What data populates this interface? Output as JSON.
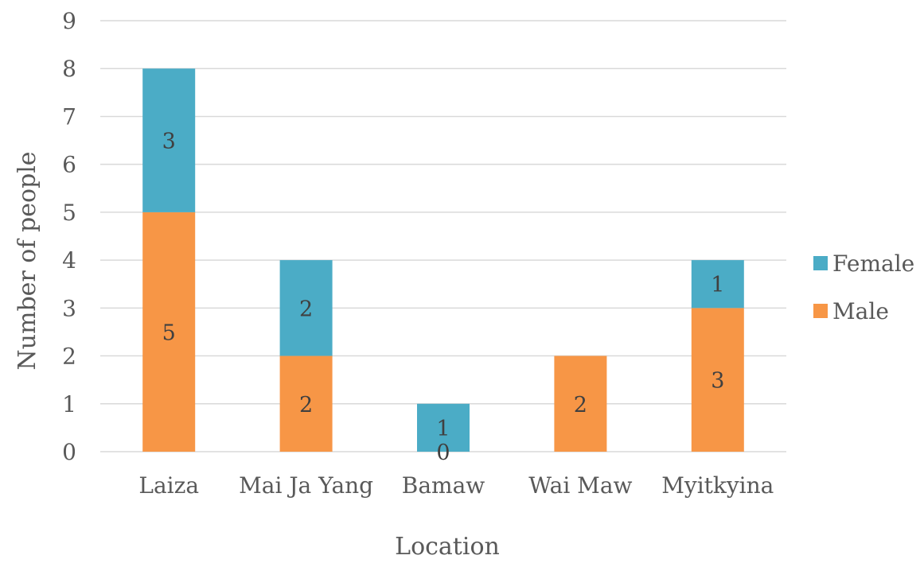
{
  "chart_data": {
    "type": "bar",
    "stacked": true,
    "title": "",
    "xlabel": "Location",
    "ylabel": "Number of people",
    "categories": [
      "Laiza",
      "Mai Ja Yang",
      "Bamaw",
      "Wai Maw",
      "Myitkyina"
    ],
    "series": [
      {
        "name": "Male",
        "values": [
          5,
          2,
          0,
          2,
          3
        ],
        "color": "#f79646"
      },
      {
        "name": "Female",
        "values": [
          3,
          2,
          1,
          0,
          1
        ],
        "color": "#4bacc6"
      }
    ],
    "data_labels": {
      "Male": [
        "5",
        "2",
        "0",
        "2",
        "3"
      ],
      "Female": [
        "3",
        "2",
        "1",
        "",
        "1"
      ]
    },
    "ylim": [
      0,
      9
    ],
    "yticks": [
      "0",
      "1",
      "2",
      "3",
      "4",
      "5",
      "6",
      "7",
      "8",
      "9"
    ],
    "grid": true,
    "legend": {
      "placement": "right",
      "entries": [
        "Female",
        "Male"
      ]
    }
  }
}
